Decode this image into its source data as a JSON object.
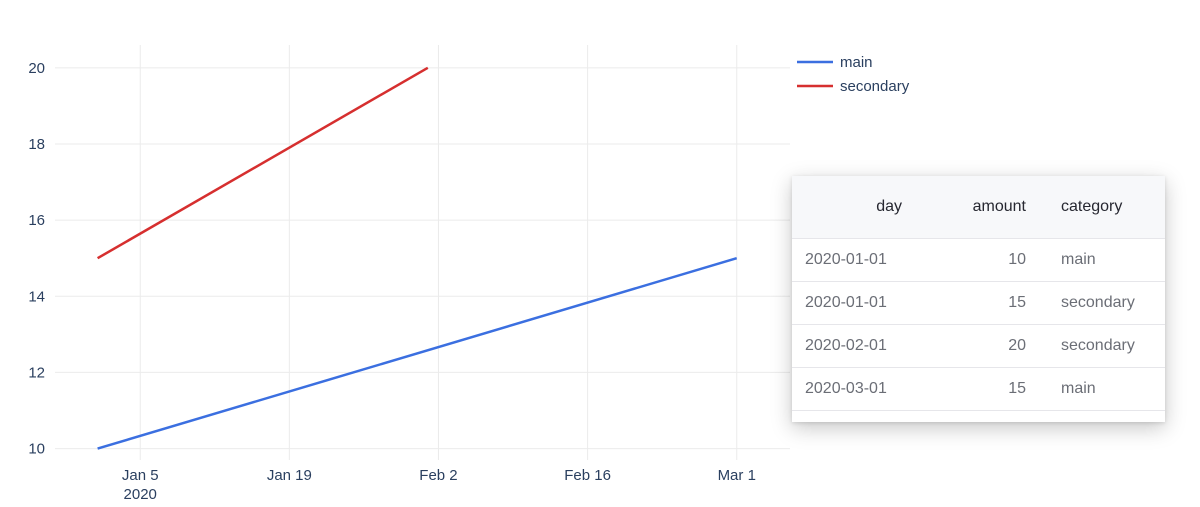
{
  "chart_data": {
    "type": "line",
    "x_axis_type": "date",
    "xlim": [
      "2019-12-28",
      "2020-03-06"
    ],
    "ylim": [
      9.7,
      20.6
    ],
    "grid": true,
    "legend_position": "top-right",
    "x_ticks": [
      {
        "date": "2020-01-05",
        "label": "Jan 5",
        "sublabel": "2020"
      },
      {
        "date": "2020-01-19",
        "label": "Jan 19"
      },
      {
        "date": "2020-02-02",
        "label": "Feb 2"
      },
      {
        "date": "2020-02-16",
        "label": "Feb 16"
      },
      {
        "date": "2020-03-01",
        "label": "Mar 1"
      }
    ],
    "y_ticks": [
      10,
      12,
      14,
      16,
      18,
      20
    ],
    "series": [
      {
        "name": "main",
        "color": "#3b6fe0",
        "x": [
          "2020-01-01",
          "2020-03-01"
        ],
        "y": [
          10,
          15
        ]
      },
      {
        "name": "secondary",
        "color": "#d62f2f",
        "x": [
          "2020-01-01",
          "2020-02-01"
        ],
        "y": [
          15,
          20
        ]
      }
    ]
  },
  "table": {
    "columns": [
      "day",
      "amount",
      "category"
    ],
    "rows": [
      [
        "2020-01-01",
        "10",
        "main"
      ],
      [
        "2020-01-01",
        "15",
        "secondary"
      ],
      [
        "2020-02-01",
        "20",
        "secondary"
      ],
      [
        "2020-03-01",
        "15",
        "main"
      ]
    ]
  }
}
